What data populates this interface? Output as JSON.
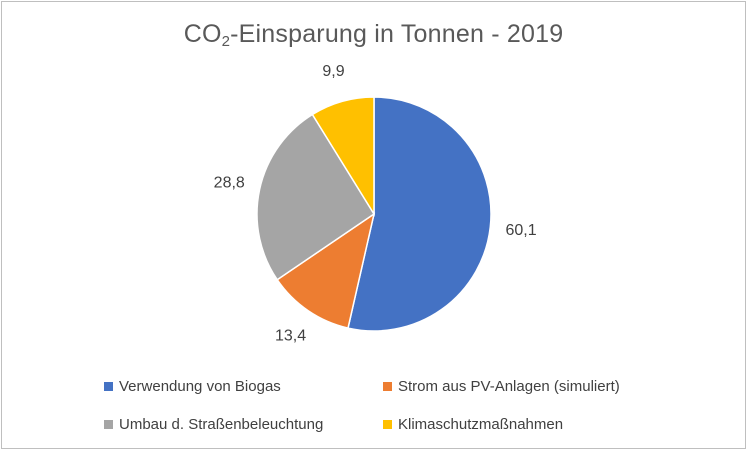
{
  "chart_data": {
    "type": "pie",
    "title_main": "CO",
    "title_sub": "2",
    "title_rest": "-Einsparung in Tonnen - 2019",
    "categories": [
      "Verwendung von Biogas",
      "Strom aus PV-Anlagen (simuliert)",
      "Umbau d. Straßenbeleuchtung",
      "Klimaschutzmaßnahmen"
    ],
    "values": [
      60.1,
      13.4,
      28.8,
      9.9
    ],
    "data_labels": [
      "60,1",
      "13,4",
      "28,8",
      "9,9"
    ],
    "colors": [
      "#4472c4",
      "#ed7d31",
      "#a5a5a5",
      "#ffc000"
    ],
    "start_angle_deg": 0,
    "direction": "clockwise",
    "legend_position": "bottom"
  }
}
